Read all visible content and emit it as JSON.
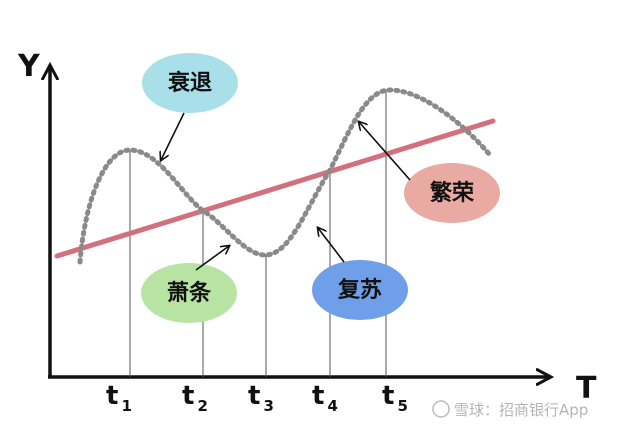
{
  "axes": {
    "y_label": "Y",
    "x_label": "T"
  },
  "phases": [
    {
      "label": "衰退"
    },
    {
      "label": "萧条"
    },
    {
      "label": "复苏"
    },
    {
      "label": "繁荣"
    }
  ],
  "time_marks": [
    {
      "base": "t",
      "sub": "1"
    },
    {
      "base": "t",
      "sub": "2"
    },
    {
      "base": "t",
      "sub": "3"
    },
    {
      "base": "t",
      "sub": "4"
    },
    {
      "base": "t",
      "sub": "5"
    }
  ],
  "watermark": "雪球：招商银行App"
}
